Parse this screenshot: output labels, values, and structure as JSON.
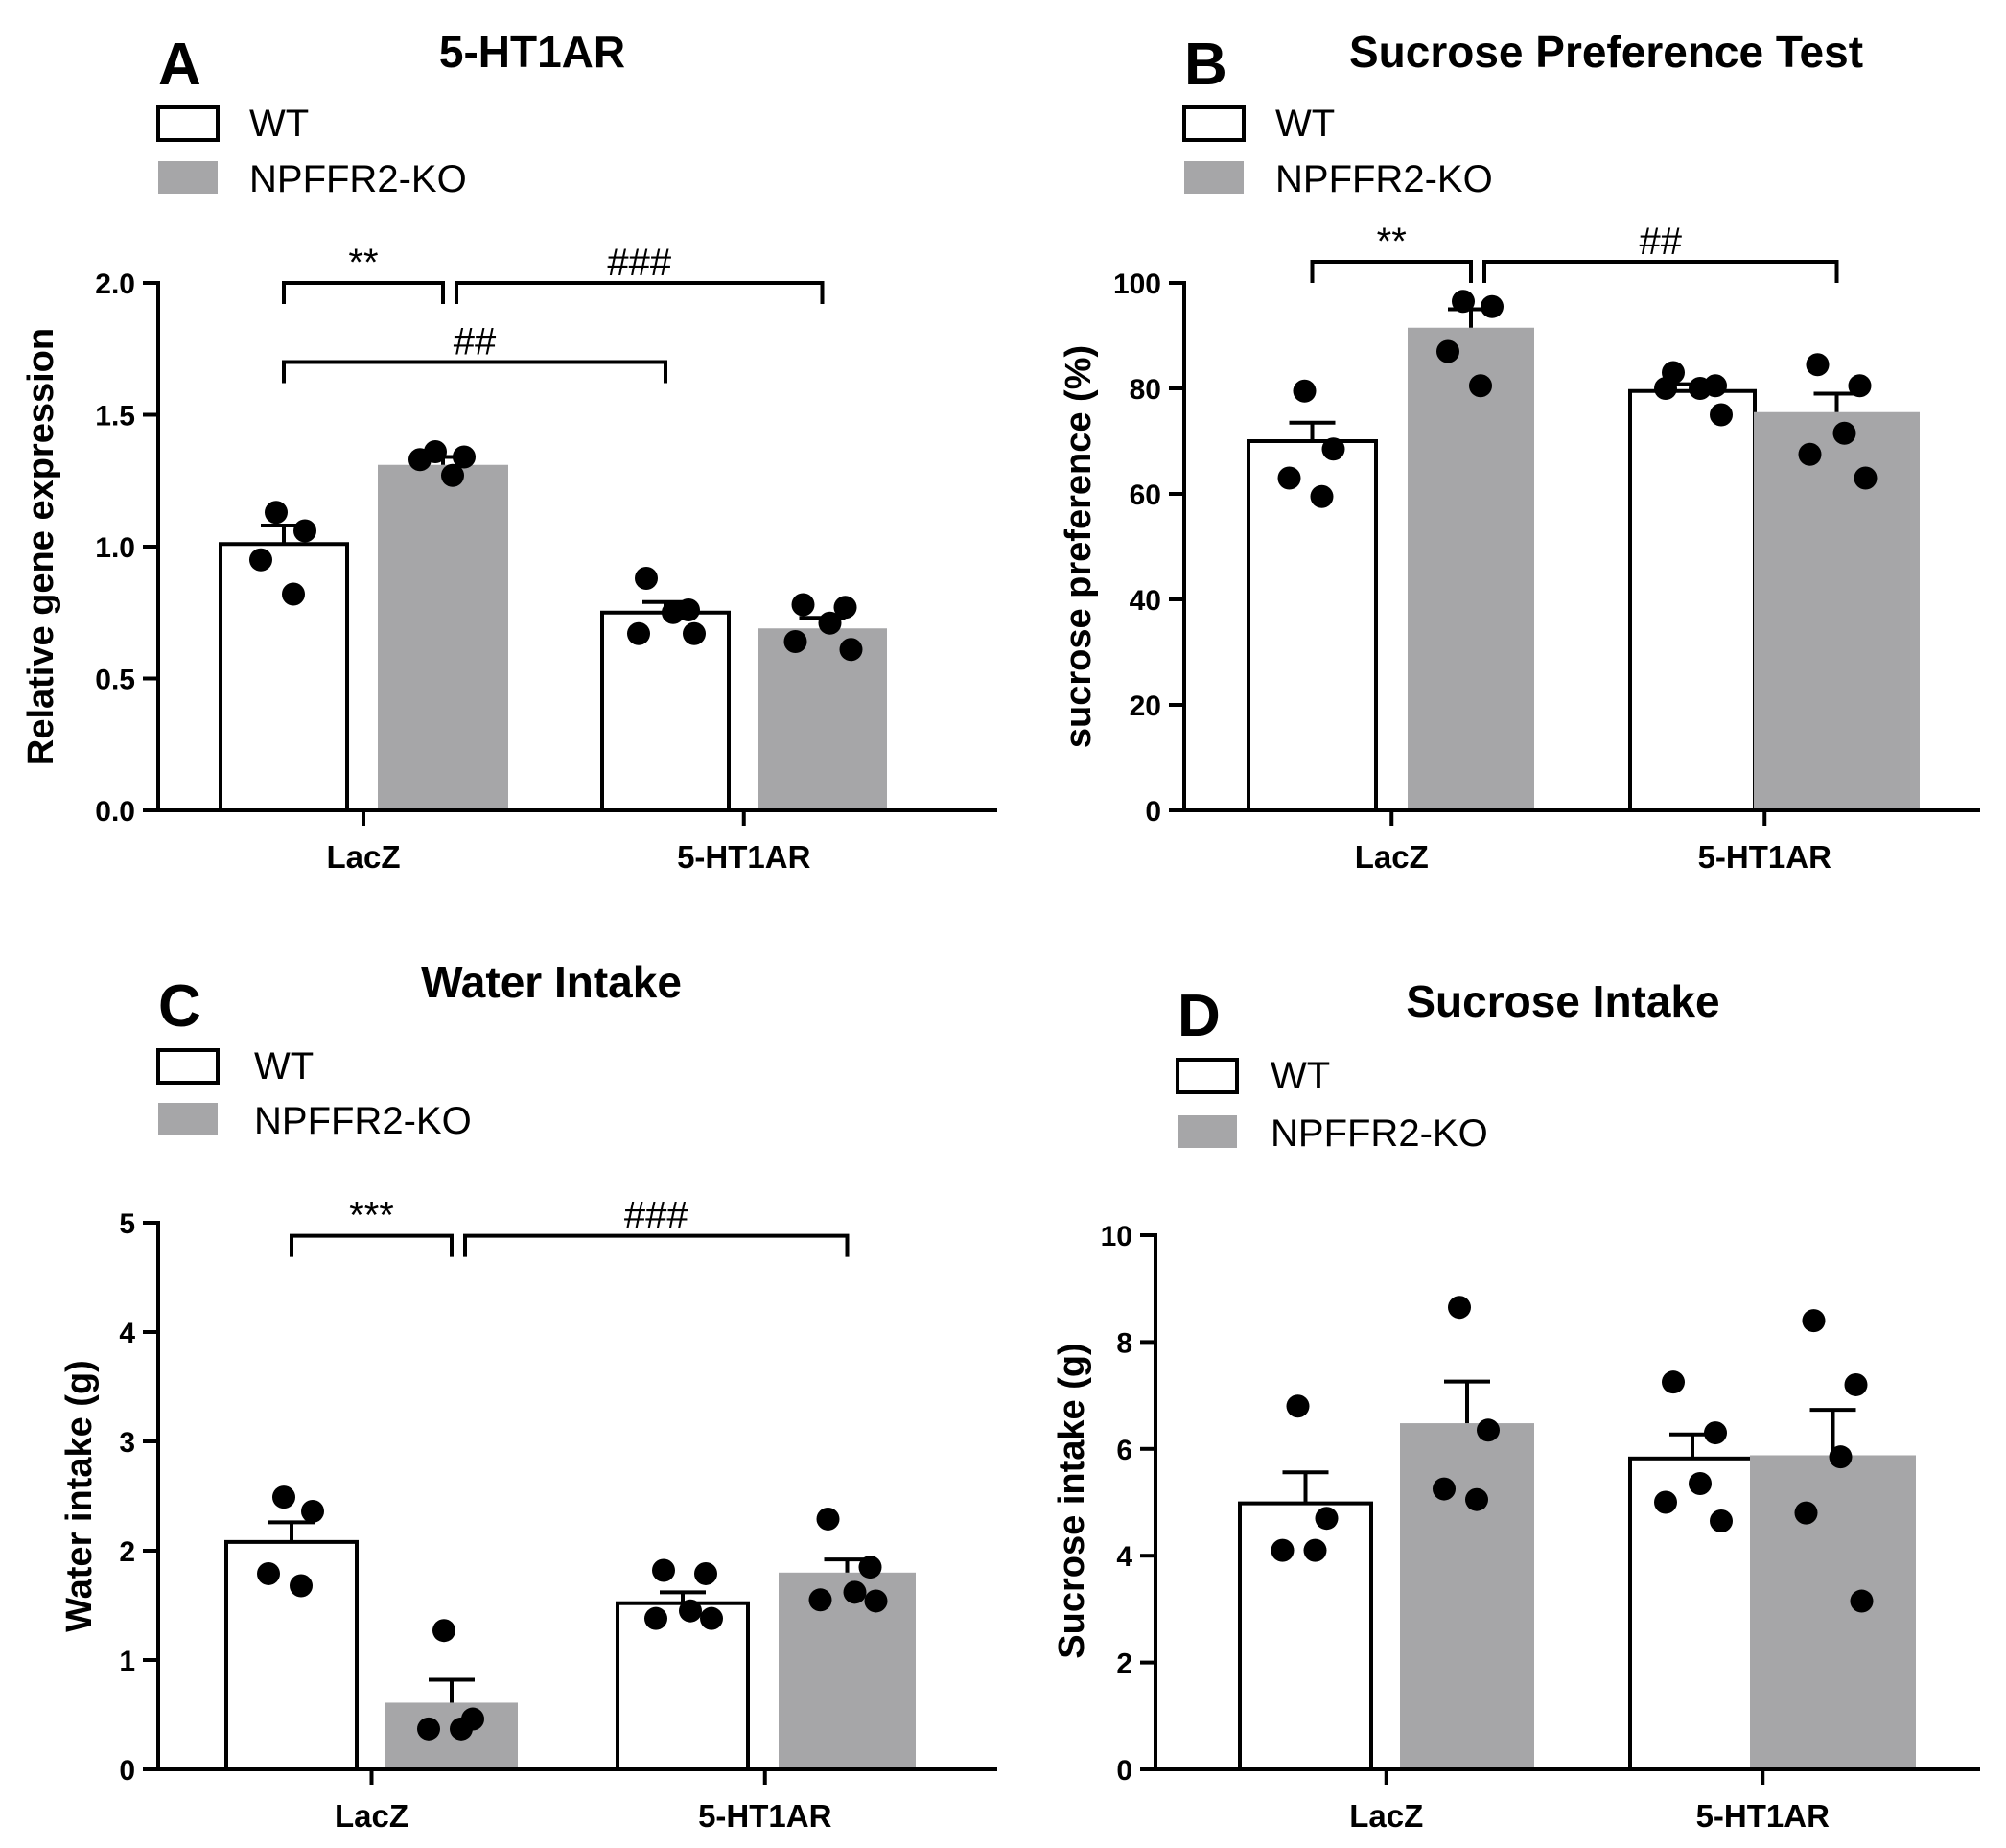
{
  "chart_data": [
    {
      "panel": "A",
      "type": "bar",
      "title": "5-HT1AR",
      "ylabel": "Relative gene expression",
      "ylim": [
        0,
        2.0
      ],
      "yticks": [
        "0.0",
        "0.5",
        "1.0",
        "1.5",
        "2.0"
      ],
      "categories": [
        "LacZ",
        "5-HT1AR"
      ],
      "series": [
        {
          "name": "WT",
          "color": "#ffffff",
          "values": [
            1.01,
            0.75
          ],
          "sem": [
            0.07,
            0.04
          ],
          "points": [
            [
              1.13,
              1.06,
              0.95,
              0.82
            ],
            [
              0.88,
              0.76,
              0.75,
              0.67,
              0.67
            ]
          ]
        },
        {
          "name": "NPFFR2-KO",
          "color": "#a6a6a8",
          "values": [
            1.31,
            0.69
          ],
          "sem": [
            0.03,
            0.04
          ],
          "points": [
            [
              1.36,
              1.34,
              1.33,
              1.27
            ],
            [
              0.78,
              0.77,
              0.71,
              0.64,
              0.61
            ]
          ]
        }
      ],
      "significance": [
        {
          "label": "**",
          "from": [
            0,
            0
          ],
          "to": [
            0,
            1
          ],
          "level": 2.0
        },
        {
          "label": "###",
          "from": [
            0,
            1
          ],
          "to": [
            1,
            1
          ],
          "level": 2.0
        },
        {
          "label": "##",
          "from": [
            0,
            0
          ],
          "to": [
            1,
            0
          ],
          "level": 1.7
        }
      ]
    },
    {
      "panel": "B",
      "type": "bar",
      "title": "Sucrose Preference Test",
      "ylabel": "sucrose preference (%)",
      "ylim": [
        0,
        100
      ],
      "yticks": [
        "0",
        "20",
        "40",
        "60",
        "80",
        "100"
      ],
      "categories": [
        "LacZ",
        "5-HT1AR"
      ],
      "series": [
        {
          "name": "WT",
          "color": "#ffffff",
          "values": [
            70,
            79.5
          ],
          "sem": [
            3.5,
            1.3
          ],
          "points": [
            [
              79.5,
              68.5,
              63,
              59.5
            ],
            [
              83,
              80.5,
              80,
              80,
              75
            ]
          ]
        },
        {
          "name": "NPFFR2-KO",
          "color": "#a6a6a8",
          "values": [
            91.5,
            75.5
          ],
          "sem": [
            3.5,
            3.5
          ],
          "points": [
            [
              96.5,
              95.5,
              87,
              80.5
            ],
            [
              84.5,
              80.5,
              71.5,
              67.5,
              63
            ]
          ]
        }
      ],
      "significance": [
        {
          "label": "**",
          "from": [
            0,
            0
          ],
          "to": [
            0,
            1
          ],
          "level": 104
        },
        {
          "label": "##",
          "from": [
            0,
            1
          ],
          "to": [
            1,
            1
          ],
          "level": 104
        }
      ]
    },
    {
      "panel": "C",
      "type": "bar",
      "title": "Water Intake",
      "ylabel": "Water intake (g)",
      "ylim": [
        0,
        5
      ],
      "yticks": [
        "0",
        "1",
        "2",
        "3",
        "4",
        "5"
      ],
      "categories": [
        "LacZ",
        "5-HT1AR"
      ],
      "series": [
        {
          "name": "WT",
          "color": "#ffffff",
          "values": [
            2.08,
            1.52
          ],
          "sem": [
            0.18,
            0.1
          ],
          "points": [
            [
              2.49,
              2.36,
              1.79,
              1.68
            ],
            [
              1.82,
              1.79,
              1.45,
              1.38,
              1.38
            ]
          ]
        },
        {
          "name": "NPFFR2-KO",
          "color": "#a6a6a8",
          "values": [
            0.61,
            1.8
          ],
          "sem": [
            0.21,
            0.12
          ],
          "points": [
            [
              1.27,
              0.46,
              0.37,
              0.37
            ],
            [
              2.29,
              1.85,
              1.62,
              1.55,
              1.54
            ]
          ]
        }
      ],
      "significance": [
        {
          "label": "***",
          "from": [
            0,
            0
          ],
          "to": [
            0,
            1
          ],
          "level": 4.88
        },
        {
          "label": "###",
          "from": [
            0,
            1
          ],
          "to": [
            1,
            1
          ],
          "level": 4.88
        }
      ]
    },
    {
      "panel": "D",
      "type": "bar",
      "title": "Sucrose Intake",
      "ylabel": "Sucrose intake (g)",
      "ylim": [
        0,
        10
      ],
      "yticks": [
        "0",
        "2",
        "4",
        "6",
        "8",
        "10"
      ],
      "categories": [
        "LacZ",
        "5-HT1AR"
      ],
      "series": [
        {
          "name": "WT",
          "color": "#ffffff",
          "values": [
            4.98,
            5.82
          ],
          "sem": [
            0.58,
            0.45
          ],
          "points": [
            [
              6.8,
              4.7,
              4.1,
              4.1
            ],
            [
              7.25,
              6.3,
              5.35,
              5.0,
              4.65
            ]
          ]
        },
        {
          "name": "NPFFR2-KO",
          "color": "#a6a6a8",
          "values": [
            6.48,
            5.88
          ],
          "sem": [
            0.78,
            0.85
          ],
          "points": [
            [
              8.65,
              6.35,
              5.25,
              5.05
            ],
            [
              8.4,
              7.2,
              5.85,
              4.8,
              3.15
            ]
          ]
        }
      ],
      "significance": []
    }
  ]
}
